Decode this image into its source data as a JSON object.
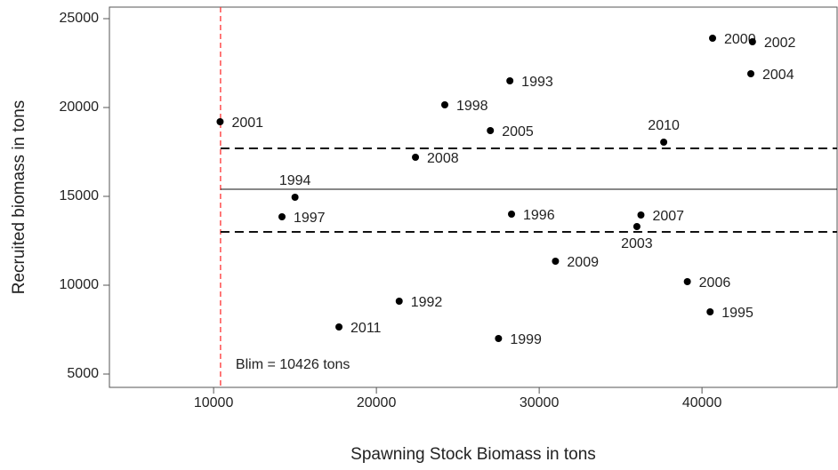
{
  "chart_data": {
    "type": "scatter",
    "xlabel": "Spawning Stock Biomass in tons",
    "ylabel": "Recruited biomass in tons",
    "labels": [
      "2001",
      "1994",
      "1997",
      "2011",
      "1992",
      "2008",
      "1998",
      "2005",
      "1999",
      "1993",
      "1996",
      "2009",
      "2003",
      "2007",
      "2010",
      "2006",
      "1995",
      "2000",
      "2004",
      "2002"
    ],
    "x": [
      10400,
      15000,
      14200,
      17700,
      21400,
      22400,
      24200,
      27000,
      27500,
      28200,
      28300,
      31000,
      36000,
      36250,
      37650,
      39100,
      40500,
      40650,
      43000,
      43100
    ],
    "values": [
      19200,
      14950,
      13850,
      7650,
      9100,
      17200,
      20150,
      18700,
      7000,
      21500,
      14000,
      11350,
      13300,
      13950,
      18050,
      10200,
      8500,
      23900,
      21900,
      23700
    ],
    "color": "#000000",
    "xlim": [
      3600,
      48300
    ],
    "ylim": [
      4250,
      25650
    ],
    "xticks": [
      10000,
      20000,
      30000,
      40000
    ],
    "yticks": [
      5000,
      10000,
      15000,
      20000,
      25000
    ],
    "hlines": [
      {
        "value": 17700,
        "style": "dashed"
      },
      {
        "value": 15400,
        "style": "solid"
      },
      {
        "value": 13000,
        "style": "dashed"
      }
    ],
    "vline": {
      "value": 10426,
      "color": "#ff3333",
      "label": "Blim =  10426 tons"
    }
  }
}
